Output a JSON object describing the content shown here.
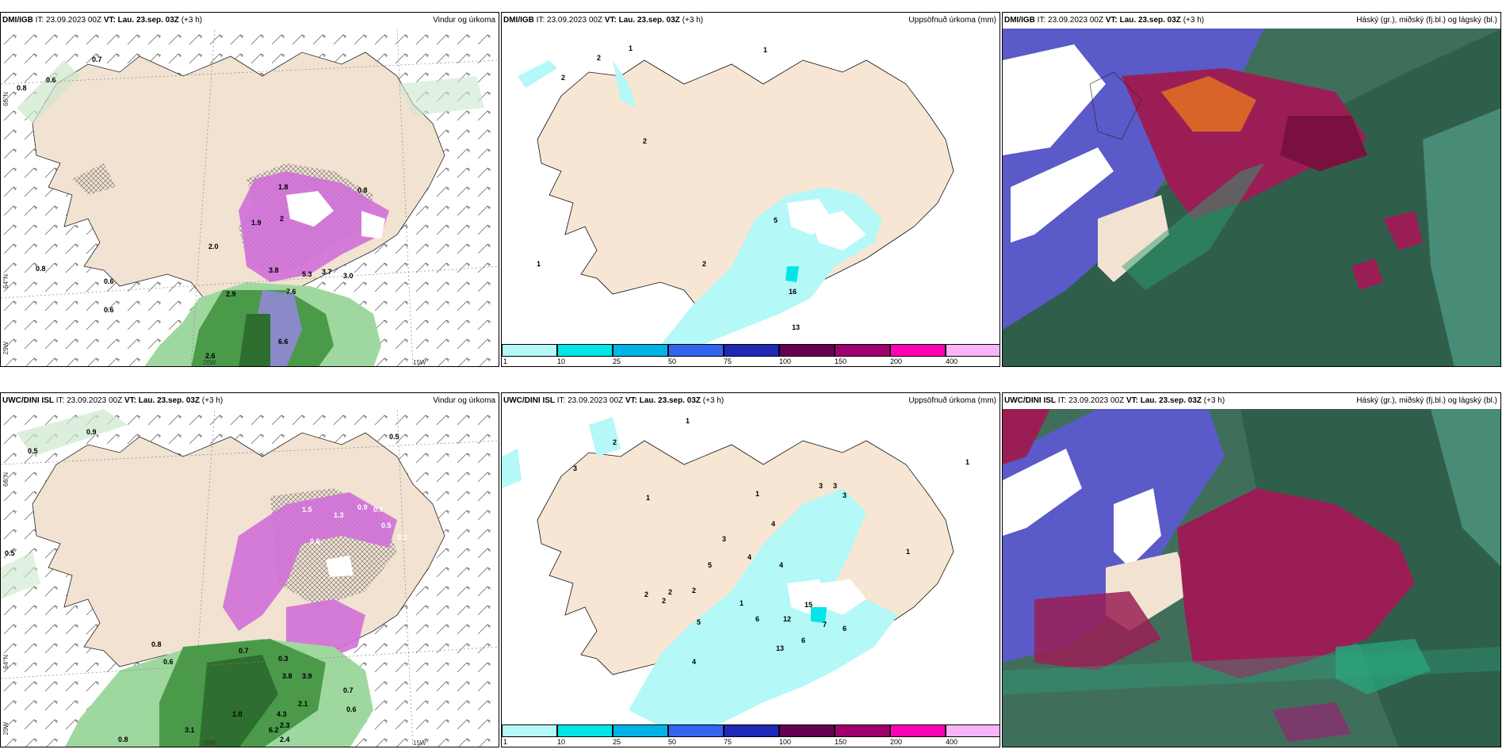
{
  "panels": [
    {
      "model": "DMI/IGB",
      "it": "IT: 23.09.2023 00Z",
      "vt_label": "VT:",
      "vt": "Lau. 23.sep. 03Z",
      "lead": "(+3 h)",
      "title": "Vindur og úrkoma"
    },
    {
      "model": "DMI/IGB",
      "it": "IT: 23.09.2023 00Z",
      "vt_label": "VT:",
      "vt": "Lau. 23.sep. 03Z",
      "lead": "(+3 h)",
      "title": "Uppsöfnuð úrkoma (mm)"
    },
    {
      "model": "DMI/IGB",
      "it": "IT: 23.09.2023 00Z",
      "vt_label": "VT:",
      "vt": "Lau. 23.sep. 03Z",
      "lead": "(+3 h)",
      "title": "Háský (gr.), miðský (fj.bl.) og lágský (bl.)"
    },
    {
      "model": "UWC/DINI ISL",
      "it": "IT: 23.09.2023 00Z",
      "vt_label": "VT:",
      "vt": "Lau. 23.sep. 03Z",
      "lead": "(+3 h)",
      "title": "Vindur og úrkoma"
    },
    {
      "model": "UWC/DINI ISL",
      "it": "IT: 23.09.2023 00Z",
      "vt_label": "VT:",
      "vt": "Lau. 23.sep. 03Z",
      "lead": "(+3 h)",
      "title": "Uppsöfnuð úrkoma (mm)"
    },
    {
      "model": "UWC/DINI ISL",
      "it": "IT: 23.09.2023 00Z",
      "vt_label": "VT:",
      "vt": "Lau. 23.sep. 03Z",
      "lead": "(+3 h)",
      "title": "Háský (gr.), miðský (fj.bl.) og lágský (bl.)"
    }
  ],
  "coords": {
    "lat66": "66°N",
    "lat64": "64°N",
    "lon25": "25W",
    "lon20": "20W",
    "lon15": "15W"
  },
  "colorbar": {
    "ticks": [
      "1",
      "10",
      "25",
      "50",
      "75",
      "100",
      "150",
      "200",
      "400"
    ],
    "colors": [
      "#b4f8f8",
      "#00e6e6",
      "#00b4e6",
      "#3264f0",
      "#1e28b4",
      "#640050",
      "#a0006e",
      "#ff00b4",
      "#f8b4f8"
    ]
  },
  "labels": {
    "wind_top": [
      "0.7",
      "0.8",
      "0.6",
      "0.8",
      "0.6",
      "0.6",
      "1.8",
      "0.8",
      "2",
      "1.9",
      "2.0",
      "3.8",
      "5.3",
      "3.7",
      "3.0",
      "2.9",
      "7.6",
      "6.6",
      "2.6"
    ],
    "precip_top": [
      "2",
      "2",
      "1",
      "2",
      "1",
      "5",
      "2",
      "1",
      "16",
      "13"
    ],
    "wind_bot": [
      "0.5",
      "0.9",
      "0.5",
      "0.5",
      "0.9",
      "1.5",
      "1.3",
      "0.7",
      "0.5",
      "0.6",
      "0.3",
      "0.8",
      "0.6",
      "0.7",
      "0.3",
      "3.8",
      "3.9",
      "4.3",
      "2.1",
      "2.3",
      "6.2",
      "2.4",
      "3.1",
      "0.7",
      "0.6",
      "0.8",
      "1.0"
    ],
    "precip_bot": [
      "2",
      "1",
      "3",
      "1",
      "1",
      "3",
      "3",
      "3",
      "3",
      "4",
      "4",
      "5",
      "2",
      "2",
      "2",
      "2",
      "1",
      "5",
      "6",
      "12",
      "15",
      "7",
      "6",
      "13",
      "6",
      "4",
      "1",
      "4",
      "1"
    ]
  }
}
